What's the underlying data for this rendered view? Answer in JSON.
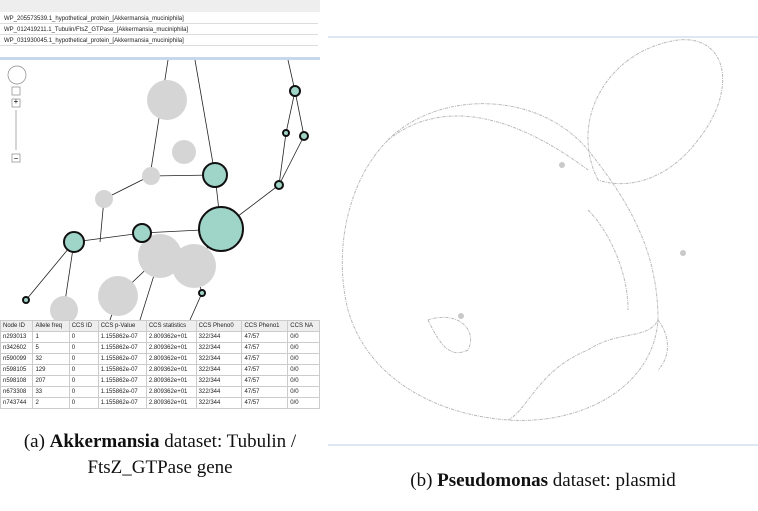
{
  "panel_a": {
    "list": [
      "WP_205573539.1_hypothetical_protein_[Akkermansia_muciniphila]",
      "WP_012419211.1_Tubulin/FtsZ_GTPase_[Akkermansia_muciniphila]",
      "WP_031930045.1_hypothetical_protein_[Akkermansia_muciniphila]"
    ],
    "zoom": {
      "plus": "+",
      "minus": "−"
    },
    "table": {
      "header": [
        "Node ID",
        "Allele freq",
        "CCS ID",
        "CCS p-Value",
        "CCS statistics",
        "CCS Pheno0",
        "CCS Pheno1",
        "CCS NA"
      ],
      "rows": [
        [
          "n293013",
          "1",
          "0",
          "1.155862e-07",
          "2.809362e+01",
          "322/344",
          "47/57",
          "0/0"
        ],
        [
          "n342602",
          "5",
          "0",
          "1.155862e-07",
          "2.809362e+01",
          "322/344",
          "47/57",
          "0/0"
        ],
        [
          "n590099",
          "32",
          "0",
          "1.155862e-07",
          "2.809362e+01",
          "322/344",
          "47/57",
          "0/0"
        ],
        [
          "n598105",
          "129",
          "0",
          "1.155862e-07",
          "2.809362e+01",
          "322/344",
          "47/57",
          "0/0"
        ],
        [
          "n598108",
          "207",
          "0",
          "1.155862e-07",
          "2.809362e+01",
          "322/344",
          "47/57",
          "0/0"
        ],
        [
          "n673308",
          "33",
          "0",
          "1.155862e-07",
          "2.809362e+01",
          "322/344",
          "47/57",
          "0/0"
        ],
        [
          "n743744",
          "2",
          "0",
          "1.155862e-07",
          "2.809362e+01",
          "322/344",
          "47/57",
          "0/0"
        ]
      ]
    },
    "caption": {
      "label": "(a)",
      "bold": "Akkermansia",
      "text": "dataset: Tubulin / FtsZ_GTPase gene"
    }
  },
  "panel_b": {
    "caption": {
      "label": "(b)",
      "bold": "Pseudomonas",
      "text": "dataset: plasmid"
    }
  }
}
